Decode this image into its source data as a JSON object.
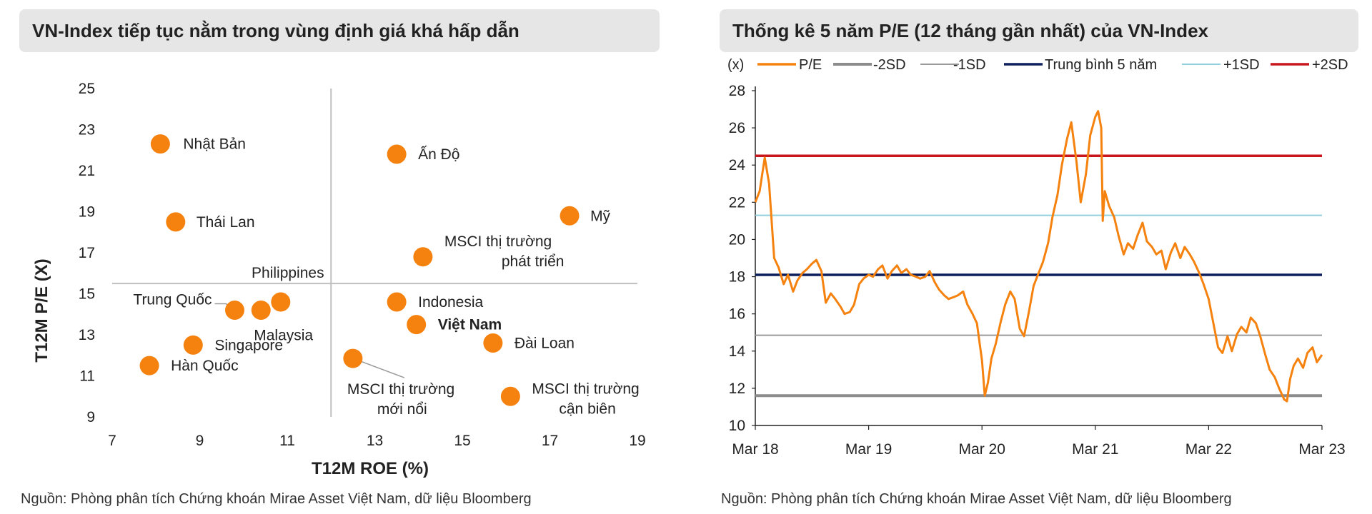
{
  "panels": {
    "left": {
      "title": "VN-Index tiếp tục nằm trong vùng định giá khá hấp dẫn",
      "source": "Nguồn: Phòng phân tích Chứng khoán Mirae Asset Việt Nam, dữ liệu Bloomberg"
    },
    "right": {
      "title": "Thống kê 5 năm P/E (12 tháng gần nhất) của VN-Index",
      "source": "Nguồn: Phòng phân tích Chứng khoán Mirae Asset Việt Nam, dữ liệu Bloomberg"
    }
  },
  "colors": {
    "marker": "#f5820f",
    "pe_line": "#f5820f",
    "minus2sd": "#8c8c8c",
    "minus1sd": "#9a9a9a",
    "mean": "#0d1f5c",
    "plus1sd": "#8fd0dc",
    "plus2sd": "#c8161d",
    "axis": "#bfbfbf"
  },
  "chart_data": [
    {
      "type": "scatter",
      "xlabel": "T12M ROE (%)",
      "ylabel": "T12M P/E (X)",
      "xlim": [
        7,
        19
      ],
      "ylim": [
        9,
        25
      ],
      "x_ticks": [
        7,
        9,
        11,
        13,
        15,
        17,
        19
      ],
      "y_ticks": [
        9,
        11,
        13,
        15,
        17,
        19,
        21,
        23,
        25
      ],
      "crosshair": {
        "x": 12,
        "y": 15.5
      },
      "points": [
        {
          "label": "Nhật Bản",
          "x": 8.1,
          "y": 22.3
        },
        {
          "label": "Ấn Độ",
          "x": 13.5,
          "y": 21.8
        },
        {
          "label": "Thái Lan",
          "x": 8.45,
          "y": 18.5
        },
        {
          "label": "Mỹ",
          "x": 17.45,
          "y": 18.8
        },
        {
          "label": "MSCI thị trường phát triển",
          "x": 14.1,
          "y": 16.8
        },
        {
          "label": "Philippines",
          "x": 10.85,
          "y": 14.6
        },
        {
          "label": "Trung Quốc",
          "x": 9.8,
          "y": 14.2
        },
        {
          "label": "Malaysia",
          "x": 10.4,
          "y": 14.2
        },
        {
          "label": "Indonesia",
          "x": 13.5,
          "y": 14.6
        },
        {
          "label": "Việt Nam",
          "x": 13.95,
          "y": 13.5,
          "bold": true
        },
        {
          "label": "Singapore",
          "x": 8.85,
          "y": 12.5
        },
        {
          "label": "Đài Loan",
          "x": 15.7,
          "y": 12.6
        },
        {
          "label": "Hàn Quốc",
          "x": 7.85,
          "y": 11.5
        },
        {
          "label": "MSCI thị trường mới nổi",
          "x": 12.5,
          "y": 11.85
        },
        {
          "label": "MSCI thị trường cận biên",
          "x": 16.1,
          "y": 10.0
        }
      ]
    },
    {
      "type": "line",
      "unit": "(x)",
      "ylim": [
        10,
        28
      ],
      "y_ticks": [
        10,
        12,
        14,
        16,
        18,
        20,
        22,
        24,
        26,
        28
      ],
      "x_ticks": [
        "Mar 18",
        "Mar 19",
        "Mar 20",
        "Mar 21",
        "Mar 22",
        "Mar 23"
      ],
      "xlim": [
        "2018-03",
        "2023-03"
      ],
      "legend": [
        "P/E",
        "-2SD",
        "-1SD",
        "Trung bình 5 năm",
        "+1SD",
        "+2SD"
      ],
      "bands": [
        {
          "name": "-2SD",
          "value": 11.6
        },
        {
          "name": "-1SD",
          "value": 14.85
        },
        {
          "name": "Trung bình 5 năm",
          "value": 18.1
        },
        {
          "name": "+1SD",
          "value": 21.3
        },
        {
          "name": "+2SD",
          "value": 24.5
        }
      ],
      "series": [
        {
          "name": "P/E",
          "points": [
            [
              "2018-03",
              22.0
            ],
            [
              "2018-03-15",
              22.6
            ],
            [
              "2018-04",
              24.4
            ],
            [
              "2018-04-15",
              23.0
            ],
            [
              "2018-05",
              19.0
            ],
            [
              "2018-05-15",
              18.5
            ],
            [
              "2018-06",
              17.6
            ],
            [
              "2018-06-15",
              18.1
            ],
            [
              "2018-07",
              17.2
            ],
            [
              "2018-07-15",
              17.8
            ],
            [
              "2018-08",
              18.2
            ],
            [
              "2018-08-15",
              18.4
            ],
            [
              "2018-09",
              18.7
            ],
            [
              "2018-09-15",
              18.9
            ],
            [
              "2018-10",
              18.3
            ],
            [
              "2018-10-15",
              16.6
            ],
            [
              "2018-11",
              17.1
            ],
            [
              "2018-11-15",
              16.8
            ],
            [
              "2018-12",
              16.4
            ],
            [
              "2018-12-15",
              16.0
            ],
            [
              "2019-01",
              16.1
            ],
            [
              "2019-01-15",
              16.5
            ],
            [
              "2019-02",
              17.6
            ],
            [
              "2019-02-15",
              17.9
            ],
            [
              "2019-03",
              18.1
            ],
            [
              "2019-03-15",
              18.0
            ],
            [
              "2019-04",
              18.4
            ],
            [
              "2019-04-15",
              18.6
            ],
            [
              "2019-05",
              17.9
            ],
            [
              "2019-05-15",
              18.3
            ],
            [
              "2019-06",
              18.6
            ],
            [
              "2019-06-15",
              18.2
            ],
            [
              "2019-07",
              18.4
            ],
            [
              "2019-07-15",
              18.1
            ],
            [
              "2019-08",
              18.0
            ],
            [
              "2019-08-15",
              17.9
            ],
            [
              "2019-09",
              18.0
            ],
            [
              "2019-09-15",
              18.3
            ],
            [
              "2019-10",
              17.7
            ],
            [
              "2019-10-15",
              17.3
            ],
            [
              "2019-11",
              17.0
            ],
            [
              "2019-11-15",
              16.8
            ],
            [
              "2019-12",
              16.9
            ],
            [
              "2019-12-15",
              17.0
            ],
            [
              "2020-01",
              17.2
            ],
            [
              "2020-01-15",
              16.5
            ],
            [
              "2020-02",
              16.0
            ],
            [
              "2020-02-15",
              15.5
            ],
            [
              "2020-03",
              13.5
            ],
            [
              "2020-03-10",
              11.6
            ],
            [
              "2020-03-20",
              12.3
            ],
            [
              "2020-04",
              13.6
            ],
            [
              "2020-04-15",
              14.4
            ],
            [
              "2020-05",
              15.6
            ],
            [
              "2020-05-15",
              16.5
            ],
            [
              "2020-06",
              17.2
            ],
            [
              "2020-06-15",
              16.8
            ],
            [
              "2020-07",
              15.2
            ],
            [
              "2020-07-15",
              14.8
            ],
            [
              "2020-08",
              16.2
            ],
            [
              "2020-08-15",
              17.5
            ],
            [
              "2020-09",
              18.2
            ],
            [
              "2020-09-15",
              18.8
            ],
            [
              "2020-10",
              19.8
            ],
            [
              "2020-10-15",
              21.2
            ],
            [
              "2020-11",
              22.4
            ],
            [
              "2020-11-15",
              24.0
            ],
            [
              "2020-12",
              25.4
            ],
            [
              "2020-12-15",
              26.3
            ],
            [
              "2021-01",
              24.2
            ],
            [
              "2021-01-15",
              22.0
            ],
            [
              "2021-02",
              23.5
            ],
            [
              "2021-02-15",
              25.6
            ],
            [
              "2021-03",
              26.6
            ],
            [
              "2021-03-10",
              26.9
            ],
            [
              "2021-03-20",
              26.0
            ],
            [
              "2021-03-25",
              21.0
            ],
            [
              "2021-04",
              22.6
            ],
            [
              "2021-04-15",
              21.8
            ],
            [
              "2021-05",
              21.2
            ],
            [
              "2021-05-15",
              20.2
            ],
            [
              "2021-06",
              19.2
            ],
            [
              "2021-06-15",
              19.8
            ],
            [
              "2021-07",
              19.5
            ],
            [
              "2021-07-15",
              20.2
            ],
            [
              "2021-08",
              20.9
            ],
            [
              "2021-08-15",
              19.9
            ],
            [
              "2021-09",
              19.6
            ],
            [
              "2021-09-15",
              19.2
            ],
            [
              "2021-10",
              19.4
            ],
            [
              "2021-10-15",
              18.4
            ],
            [
              "2021-11",
              19.3
            ],
            [
              "2021-11-15",
              19.8
            ],
            [
              "2021-12",
              19.0
            ],
            [
              "2021-12-15",
              19.6
            ],
            [
              "2022-01",
              19.2
            ],
            [
              "2022-01-15",
              18.8
            ],
            [
              "2022-02",
              18.2
            ],
            [
              "2022-02-15",
              17.6
            ],
            [
              "2022-03",
              16.8
            ],
            [
              "2022-03-15",
              15.6
            ],
            [
              "2022-04",
              14.2
            ],
            [
              "2022-04-15",
              13.9
            ],
            [
              "2022-05",
              14.8
            ],
            [
              "2022-05-15",
              14.0
            ],
            [
              "2022-06",
              14.9
            ],
            [
              "2022-06-15",
              15.3
            ],
            [
              "2022-07",
              15.0
            ],
            [
              "2022-07-15",
              15.8
            ],
            [
              "2022-08",
              15.5
            ],
            [
              "2022-08-15",
              14.8
            ],
            [
              "2022-09",
              13.8
            ],
            [
              "2022-09-15",
              13.0
            ],
            [
              "2022-10",
              12.6
            ],
            [
              "2022-10-15",
              12.0
            ],
            [
              "2022-11",
              11.4
            ],
            [
              "2022-11-10",
              11.3
            ],
            [
              "2022-11-20",
              12.5
            ],
            [
              "2022-12",
              13.2
            ],
            [
              "2022-12-15",
              13.6
            ],
            [
              "2023-01",
              13.1
            ],
            [
              "2023-01-15",
              13.9
            ],
            [
              "2023-02",
              14.2
            ],
            [
              "2023-02-15",
              13.4
            ],
            [
              "2023-03",
              13.8
            ]
          ]
        }
      ]
    }
  ]
}
